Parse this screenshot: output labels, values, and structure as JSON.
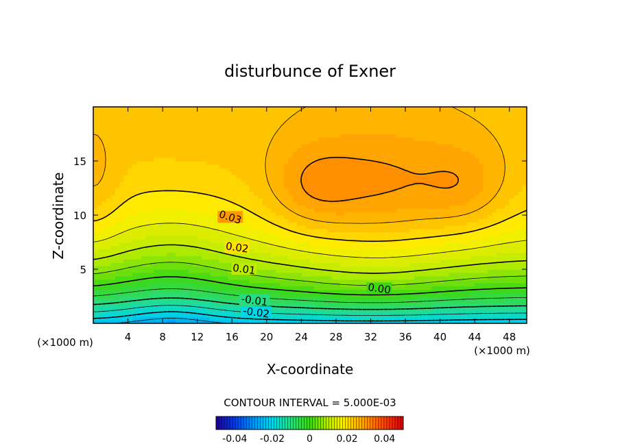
{
  "chart_data": {
    "type": "heatmap",
    "title": "disturbunce of Exner",
    "xlabel": "X-coordinate",
    "ylabel": "Z-coordinate",
    "x_unit_left": "(×1000 m)",
    "x_unit_right": "(×1000 m)",
    "xlim": [
      0,
      50
    ],
    "ylim": [
      0,
      20
    ],
    "x_ticks": [
      4,
      8,
      12,
      16,
      20,
      24,
      28,
      32,
      36,
      40,
      44,
      48
    ],
    "y_ticks": [
      5,
      10,
      15
    ],
    "grid": false,
    "contour_interval_text": "CONTOUR INTERVAL = 5.000E-03",
    "contour_labels": [
      {
        "text": "0.03",
        "value": 0.03,
        "x": 15.8,
        "z": 9.8
      },
      {
        "text": "0.02",
        "value": 0.02,
        "x": 16.6,
        "z": 7.0
      },
      {
        "text": "0.01",
        "value": 0.01,
        "x": 17.4,
        "z": 5.0
      },
      {
        "text": "0.00",
        "value": 0.0,
        "x": 33,
        "z": 3.2
      },
      {
        "text": "-0.01",
        "value": -0.01,
        "x": 18.6,
        "z": 2.1
      },
      {
        "text": "-0.02",
        "value": -0.02,
        "x": 18.8,
        "z": 1.0
      }
    ],
    "colorbar": {
      "range": [
        -0.05,
        0.05
      ],
      "tick_values": [
        -0.04,
        -0.02,
        0,
        0.02,
        0.04
      ],
      "tick_labels": [
        "-0.04",
        "-0.02",
        "0",
        "0.02",
        "0.04"
      ]
    }
  }
}
